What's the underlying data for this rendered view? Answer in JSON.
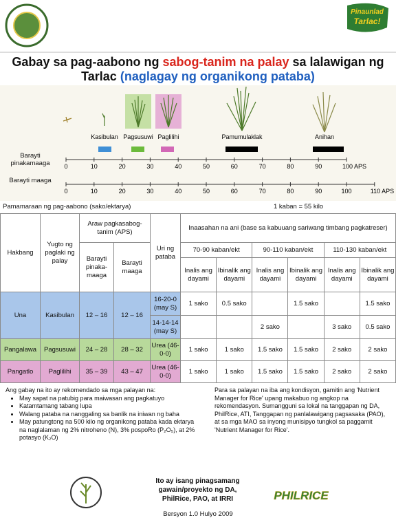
{
  "header": {
    "badge_line1": "Pinaunlad",
    "badge_line2": "Tarlac!"
  },
  "title": {
    "part1": "Gabay sa pag-aabono ng ",
    "part2": "sabog-tanim na palay",
    "part3": " sa lalawigan ng Tarlac ",
    "part4": "(naglagay ng organikong pataba)"
  },
  "stages": [
    "Kasibulan",
    "Pagsusuwi",
    "Paglilihi",
    "Pamumulaklak",
    "Anihan"
  ],
  "timelines": [
    {
      "label": "Barayti pinakamaaga",
      "ticks": [
        "0",
        "10",
        "20",
        "30",
        "40",
        "50",
        "60",
        "70",
        "80",
        "90",
        "100 APS"
      ]
    },
    {
      "label": "Barayti maaga",
      "ticks": [
        "0",
        "10",
        "20",
        "30",
        "40",
        "50",
        "60",
        "70",
        "80",
        "90",
        "100",
        "110 APS"
      ]
    }
  ],
  "table": {
    "caption": "Pamamaraan ng pag-aabono (sako/ektarya)",
    "note": "1 kaban = 55 kilo",
    "headers": {
      "step": "Hakbang",
      "stage": "Yugto ng paglaki ng palay",
      "days": "Araw pagkasabog-tanim (APS)",
      "earliest": "Barayti pinaka-maaga",
      "early": "Barayti maaga",
      "fertilizer": "Uri ng pataba",
      "yield": "Inaasahan na ani (base sa kabuuang sariwang timbang pagkatreser)",
      "yield_levels": [
        "70-90 kaban/ekt",
        "90-110 kaban/ekt",
        "110-130 kaban/ekt"
      ],
      "straw": [
        "Inalis ang dayami",
        "Ibinalik ang dayami"
      ]
    },
    "rows": [
      {
        "step": "Una",
        "stage": "Kasibulan",
        "earliest": "12 – 16",
        "early": "12 – 16",
        "color": "#a9c6ea",
        "fertilizers": [
          {
            "name": "16-20-0 (may S)",
            "amounts": [
              "1 sako",
              "0.5 sako",
              null,
              "1.5 sako",
              null,
              "1.5 sako"
            ]
          },
          {
            "name": "14-14-14 (may S)",
            "amounts": [
              null,
              null,
              "2 sako",
              null,
              "3 sako",
              "0.5 sako"
            ]
          }
        ]
      },
      {
        "step": "Pangalawa",
        "stage": "Pagsusuwi",
        "earliest": "24 – 28",
        "early": "28 – 32",
        "color": "#b8d99b",
        "fertilizers": [
          {
            "name": "Urea (46-0-0)",
            "amounts": [
              "1 sako",
              "1 sako",
              "1.5 sako",
              "1.5 sako",
              "2 sako",
              "2 sako"
            ]
          }
        ]
      },
      {
        "step": "Pangatlo",
        "stage": "Paglilihi",
        "earliest": "35 – 39",
        "early": "43 – 47",
        "color": "#e2aad2",
        "fertilizers": [
          {
            "name": "Urea (46-0-0)",
            "amounts": [
              "1 sako",
              "1 sako",
              "1.5 sako",
              "1.5 sako",
              "2 sako",
              "2 sako"
            ]
          }
        ]
      }
    ]
  },
  "notes": {
    "intro": "Ang gabay na ito ay rekomendado sa mga palayan na:",
    "bullets": [
      "May sapat na patubig para maiwasan ang pagkatuyo",
      "Katamtamang tabang lupa",
      "Walang pataba na nanggaling sa banlik na iniwan ng baha",
      "May patungtong na 500 kilo ng organikong pataba kada ektarya na naglalaman ng 2% nitroheno (N), 3% pospoRo (P₂O₅), at 2% potasyo (K₂O)"
    ],
    "right": "Para sa palayan na iba ang kondisyon, gamitin ang 'Nutrient Manager for Rice' upang makabuo ng angkop na rekomendasyon. Sumangguni sa lokal na tanggapan ng DA, PhilRice, ATI, Tanggapan ng panlalawigang pagsasaka (PAO), at sa mga MAO sa inyong munisipyo tungkol sa paggamit 'Nutrient Manager for Rice'."
  },
  "footer": {
    "project": "Ito ay isang pinagsamang gawain/proyekto ng DA, PhilRice, PAO, at IRRI",
    "version": "Bersyon 1.0 Hulyo 2009",
    "logo": "PHILRICE"
  }
}
